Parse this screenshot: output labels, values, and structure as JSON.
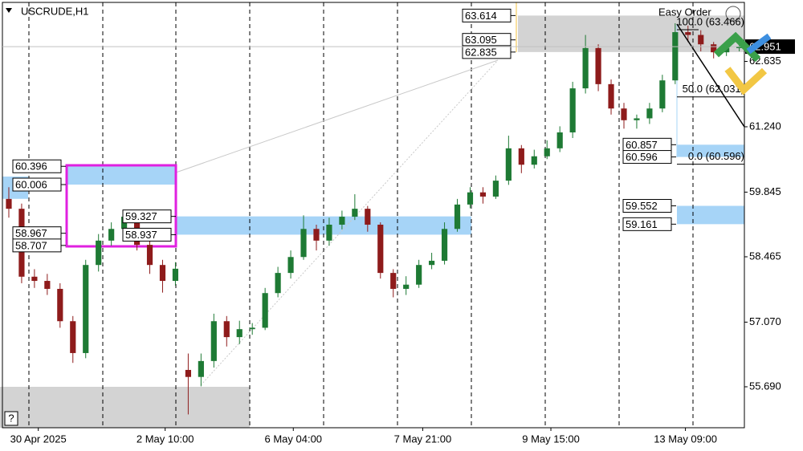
{
  "chart_data": {
    "type": "candlestick",
    "title": "USCRUDE,H1",
    "annotation": "Easy Order",
    "help": "?",
    "xlim": [
      -0.5,
      57.4
    ],
    "ylim": [
      54.816,
      63.946
    ],
    "xticks": [
      {
        "value": 2.3,
        "label": "30 Apr 2025"
      },
      {
        "value": 12.2,
        "label": "2 May 10:00"
      },
      {
        "value": 22.2,
        "label": "6 May 04:00"
      },
      {
        "value": 32.3,
        "label": "7 May 21:00"
      },
      {
        "value": 42.3,
        "label": "9 May 15:00"
      },
      {
        "value": 52.8,
        "label": "13 May 09:00"
      }
    ],
    "yticks": [
      {
        "value": 55.69,
        "label": "55.690"
      },
      {
        "value": 57.07,
        "label": "57.070"
      },
      58.465,
      59.845,
      {
        "value": 61.24,
        "label": "61.240"
      },
      62.635
    ],
    "up_color": "#1e7a34",
    "down_color": "#8e1b1b",
    "open": [
      59.7,
      59.49,
      58.04,
      57.95,
      57.78,
      57.09,
      56.41,
      58.29,
      58.81,
      59.06,
      59.32,
      58.72,
      58.29,
      57.95,
      56.05,
      55.9,
      56.24,
      57.09,
      56.75,
      56.92,
      56.95,
      57.69,
      58.12,
      58.46,
      59.06,
      58.81,
      59.15,
      59.32,
      59.49,
      59.15,
      58.12,
      57.78,
      57.87,
      58.29,
      58.38,
      59.06,
      59.58,
      59.84,
      59.75,
      60.09,
      60.78,
      60.43,
      60.61,
      60.78,
      61.12,
      62.06,
      62.92,
      62.15,
      61.63,
      61.38,
      61.42,
      61.63,
      62.23,
      63.26,
      63.2,
      63.0,
      62.83,
      62.92
    ],
    "high": [
      59.95,
      59.6,
      58.2,
      58.1,
      57.9,
      57.2,
      58.4,
      58.95,
      59.2,
      59.45,
      59.4,
      58.85,
      58.4,
      58.35,
      56.4,
      56.4,
      57.25,
      57.2,
      57.1,
      57.05,
      57.8,
      58.25,
      58.6,
      59.35,
      59.15,
      59.3,
      59.45,
      59.8,
      59.55,
      59.2,
      58.2,
      58.05,
      58.4,
      58.55,
      59.2,
      59.7,
      59.95,
      59.95,
      60.2,
      61.05,
      60.85,
      60.75,
      60.95,
      61.25,
      62.2,
      63.2,
      63.0,
      62.25,
      61.75,
      61.5,
      61.75,
      62.35,
      63.45,
      63.4,
      63.3,
      63.05,
      63.05,
      63.05
    ],
    "low": [
      59.3,
      57.9,
      57.8,
      57.65,
      56.95,
      56.2,
      56.3,
      58.15,
      58.7,
      58.95,
      58.6,
      58.1,
      57.7,
      57.85,
      55.1,
      55.7,
      56.1,
      56.55,
      56.6,
      56.8,
      56.9,
      57.6,
      58.0,
      58.4,
      58.6,
      58.7,
      59.05,
      59.25,
      59.0,
      58.0,
      57.6,
      57.65,
      57.8,
      58.2,
      58.3,
      59.0,
      59.5,
      59.6,
      59.7,
      60.0,
      60.25,
      60.35,
      60.55,
      60.7,
      61.0,
      61.95,
      62.0,
      61.5,
      61.2,
      61.2,
      61.3,
      61.55,
      62.15,
      63.05,
      62.85,
      62.7,
      62.75,
      62.85
    ],
    "close": [
      59.49,
      58.04,
      57.95,
      57.78,
      57.09,
      56.41,
      58.29,
      58.81,
      59.06,
      59.32,
      58.72,
      58.29,
      57.95,
      58.21,
      55.9,
      56.24,
      57.09,
      56.75,
      56.92,
      56.95,
      57.69,
      58.12,
      58.46,
      59.06,
      58.81,
      59.15,
      59.32,
      59.49,
      59.15,
      58.12,
      57.78,
      57.87,
      58.29,
      58.38,
      59.06,
      59.58,
      59.84,
      59.75,
      60.09,
      60.78,
      60.43,
      60.61,
      60.78,
      61.12,
      62.06,
      62.92,
      62.15,
      61.63,
      61.38,
      61.42,
      61.63,
      62.23,
      63.26,
      63.2,
      63.0,
      62.83,
      62.92,
      62.951
    ],
    "bid": 62.951,
    "zones": [
      {
        "levels": [
          63.614,
          63.095,
          62.835
        ],
        "color": "#d3d3d3"
      },
      {
        "levels": [
          60.396,
          60.006
        ],
        "color": "#a6d4f7"
      },
      {
        "levels": [
          59.327,
          58.937
        ],
        "color": "#a6d4f7"
      },
      {
        "levels": [
          58.967,
          58.707
        ],
        "color": "none"
      },
      {
        "levels": [
          60.857,
          60.596
        ],
        "color": "#a6d4f7"
      },
      {
        "levels": [
          59.552,
          59.161
        ],
        "color": "#a6d4f7"
      }
    ],
    "fibo": [
      {
        "value": 63.466,
        "label": "100.0 (63.466)"
      },
      {
        "value": 62.031,
        "label": "50.0 (62.031)"
      },
      {
        "value": 60.596,
        "label": "0.0 (60.596)"
      }
    ]
  }
}
